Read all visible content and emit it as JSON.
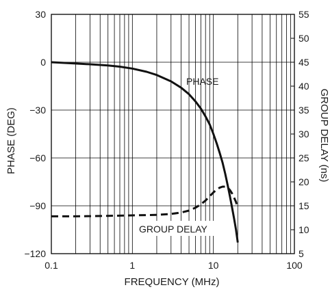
{
  "chart_data": {
    "type": "line",
    "title": "",
    "xlabel": "FREQUENCY (MHz)",
    "ylabel": "PHASE (DEG)",
    "y2label": "GROUP DELAY (ns)",
    "xscale": "log",
    "xlim": [
      0.1,
      100
    ],
    "ylim": [
      -120,
      30
    ],
    "y2lim": [
      5,
      55
    ],
    "grid": true,
    "x_tick_labels": [
      "0.1",
      "1",
      "10",
      "100"
    ],
    "y_tick_labels": [
      "30",
      "0",
      "−30",
      "−60",
      "−90",
      "−120"
    ],
    "y2_tick_labels": [
      "55",
      "50",
      "45",
      "40",
      "35",
      "30",
      "25",
      "20",
      "15",
      "10",
      "5"
    ],
    "annotations": [
      "PHASE",
      "GROUP DELAY"
    ],
    "series": [
      {
        "name": "PHASE",
        "axis": "left",
        "line_style": "solid",
        "color": "#111111",
        "x": [
          0.1,
          0.2,
          0.3,
          0.5,
          0.7,
          1,
          1.5,
          2,
          3,
          4,
          5,
          6,
          7,
          8,
          9,
          10,
          11,
          12,
          13,
          14,
          15,
          16,
          17,
          18,
          19,
          20
        ],
        "y": [
          0,
          -0.8,
          -1.3,
          -2,
          -2.8,
          -4,
          -6,
          -8,
          -12,
          -16,
          -20,
          -24.5,
          -29,
          -34,
          -39,
          -45,
          -51,
          -57,
          -63,
          -70,
          -77,
          -84,
          -91,
          -98,
          -105,
          -113
        ]
      },
      {
        "name": "GROUP DELAY",
        "axis": "right",
        "line_style": "dashed",
        "color": "#111111",
        "x": [
          0.1,
          0.2,
          0.5,
          1,
          2,
          3,
          4,
          5,
          6,
          7,
          8,
          9,
          10,
          11,
          12,
          13,
          14,
          15,
          16,
          17,
          18,
          19,
          20
        ],
        "y": [
          12.8,
          12.8,
          12.9,
          13.0,
          13.1,
          13.3,
          13.6,
          14.0,
          14.6,
          15.3,
          16.1,
          17.0,
          17.8,
          18.4,
          18.8,
          19.0,
          19.0,
          18.8,
          18.3,
          17.6,
          16.7,
          15.8,
          14.6
        ]
      }
    ]
  }
}
